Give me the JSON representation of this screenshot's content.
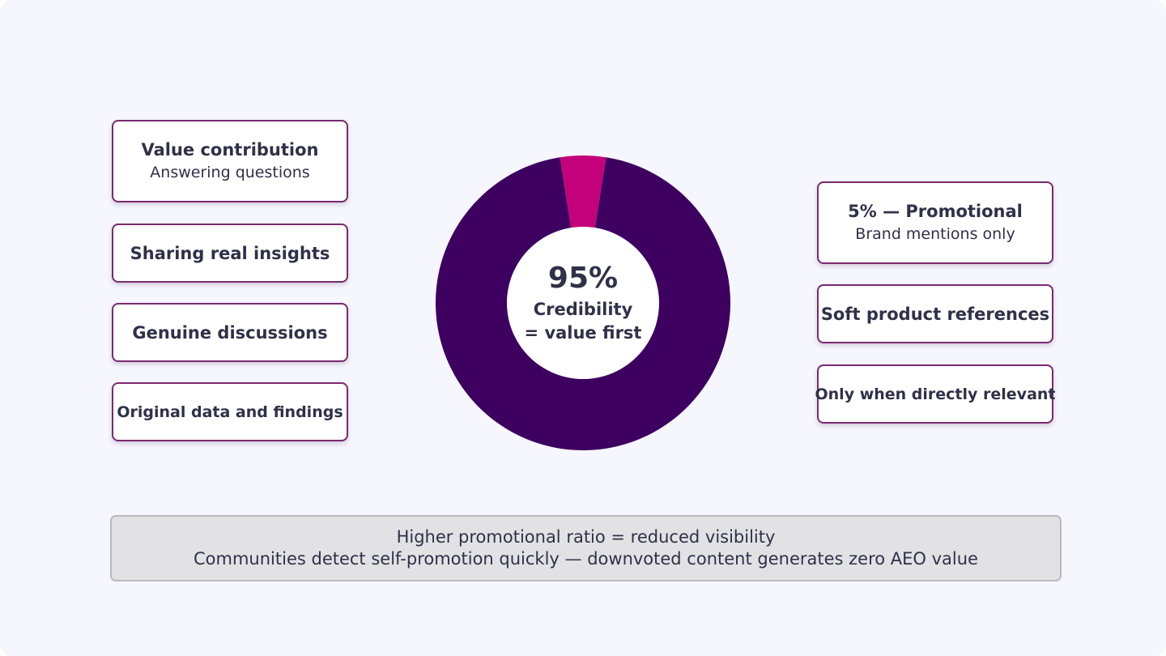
{
  "chart_data": {
    "type": "pie",
    "donut": true,
    "slices": [
      {
        "label": "Value first",
        "value": 95,
        "color": "#3d0060"
      },
      {
        "label": "Promotional",
        "value": 5,
        "color": "#c4007a"
      }
    ],
    "center": {
      "value": "95%",
      "line1": "Credibility",
      "line2": "= value first"
    }
  },
  "left_items": [
    {
      "title": "Value contribution",
      "subtitle": "Answering questions"
    },
    {
      "title": "Sharing real insights"
    },
    {
      "title": "Genuine discussions"
    },
    {
      "title": "Original data and findings"
    }
  ],
  "right_items": [
    {
      "title": "5% — Promotional",
      "subtitle": "Brand mentions only"
    },
    {
      "title": "Soft product references"
    },
    {
      "title": "Only when directly relevant"
    }
  ],
  "footer": {
    "line1": "Higher promotional ratio = reduced visibility",
    "line2": "Communities detect self-promotion quickly — downvoted content generates zero AEO value"
  }
}
